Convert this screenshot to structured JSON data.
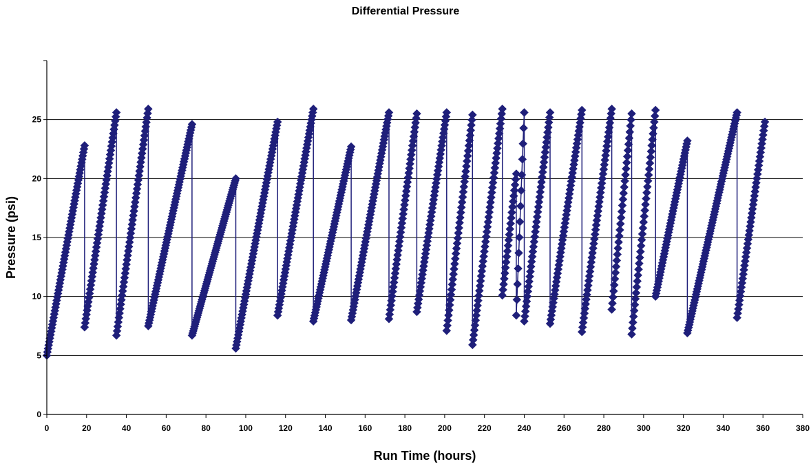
{
  "chart_data": {
    "type": "line",
    "title": "Differential Pressure",
    "xlabel": "Run Time (hours)",
    "ylabel": "Pressure (psi)",
    "xlim": [
      0,
      380
    ],
    "ylim": [
      0,
      30
    ],
    "x_ticks": [
      0,
      20,
      40,
      60,
      80,
      100,
      120,
      140,
      160,
      180,
      200,
      220,
      240,
      260,
      280,
      300,
      320,
      340,
      360,
      380
    ],
    "y_ticks": [
      0,
      5,
      10,
      15,
      20,
      25
    ],
    "grid": "horizontal",
    "legend": "none",
    "marker": "diamond",
    "series": [
      {
        "color": "#1f1f7a",
        "cycles": [
          {
            "start": [
              0,
              5.0
            ],
            "end": [
              19,
              22.8
            ]
          },
          {
            "start": [
              19,
              7.4
            ],
            "end": [
              35,
              25.6
            ]
          },
          {
            "start": [
              35,
              6.7
            ],
            "end": [
              51,
              25.9
            ]
          },
          {
            "start": [
              51,
              7.5
            ],
            "end": [
              73,
              24.6
            ]
          },
          {
            "start": [
              73,
              6.7
            ],
            "end": [
              95,
              20.0
            ]
          },
          {
            "start": [
              95,
              5.6
            ],
            "end": [
              116,
              24.8
            ]
          },
          {
            "start": [
              116,
              8.4
            ],
            "end": [
              134,
              25.9
            ]
          },
          {
            "start": [
              134,
              7.9
            ],
            "end": [
              153,
              22.7
            ]
          },
          {
            "start": [
              153,
              8.0
            ],
            "end": [
              172,
              25.6
            ]
          },
          {
            "start": [
              172,
              8.1
            ],
            "end": [
              186,
              25.5
            ]
          },
          {
            "start": [
              186,
              8.7
            ],
            "end": [
              201,
              25.6
            ]
          },
          {
            "start": [
              201,
              7.1
            ],
            "end": [
              214,
              25.4
            ]
          },
          {
            "start": [
              214,
              5.9
            ],
            "end": [
              229,
              25.9
            ]
          },
          {
            "start": [
              229,
              10.1
            ],
            "end": [
              236,
              20.4
            ]
          },
          {
            "start": [
              236,
              8.4
            ],
            "end": [
              240,
              25.6
            ]
          },
          {
            "start": [
              240,
              7.9
            ],
            "end": [
              253,
              25.6
            ]
          },
          {
            "start": [
              253,
              7.7
            ],
            "end": [
              269,
              25.8
            ]
          },
          {
            "start": [
              269,
              7.0
            ],
            "end": [
              284,
              25.9
            ]
          },
          {
            "start": [
              284,
              8.9
            ],
            "end": [
              294,
              25.5
            ]
          },
          {
            "start": [
              294,
              6.8
            ],
            "end": [
              306,
              25.8
            ]
          },
          {
            "start": [
              306,
              10.0
            ],
            "end": [
              322,
              23.2
            ]
          },
          {
            "start": [
              322,
              6.9
            ],
            "end": [
              347,
              25.6
            ]
          },
          {
            "start": [
              347,
              8.2
            ],
            "end": [
              361,
              24.8
            ]
          }
        ]
      }
    ]
  }
}
